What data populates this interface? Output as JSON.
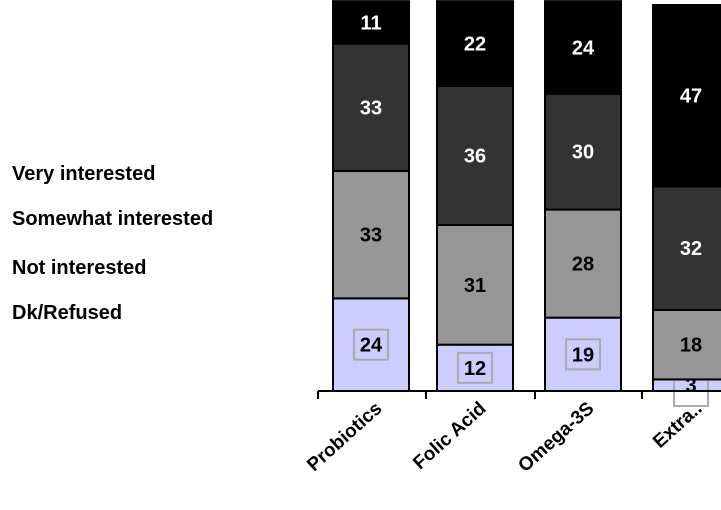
{
  "chart_data": {
    "type": "bar",
    "stacked": true,
    "percent": true,
    "categories": [
      "Probiotics",
      "Folic Acid",
      "Omega-3S",
      "Extra.."
    ],
    "series": [
      {
        "name": "Dk/Refused",
        "values": [
          24,
          12,
          19,
          3
        ],
        "color": "#ccccff",
        "label_color": "#000000"
      },
      {
        "name": "Not interested",
        "values": [
          33,
          31,
          28,
          18
        ],
        "color": "#969696",
        "label_color": "#000000"
      },
      {
        "name": "Somewhat interested",
        "values": [
          33,
          36,
          30,
          32
        ],
        "color": "#333333",
        "label_color": "#ffffff"
      },
      {
        "name": "Very interested",
        "values": [
          11,
          22,
          24,
          47
        ],
        "color": "#000000",
        "label_color": "#ffffff"
      }
    ],
    "legend_order": [
      "Very interested",
      "Somewhat interested",
      "Not interested",
      "Dk/Refused"
    ],
    "legend_placement": "left",
    "boxed_series": "Dk/Refused",
    "title": "",
    "xlabel": "",
    "ylabel": "",
    "ylim": [
      0,
      100
    ],
    "grid": false
  }
}
